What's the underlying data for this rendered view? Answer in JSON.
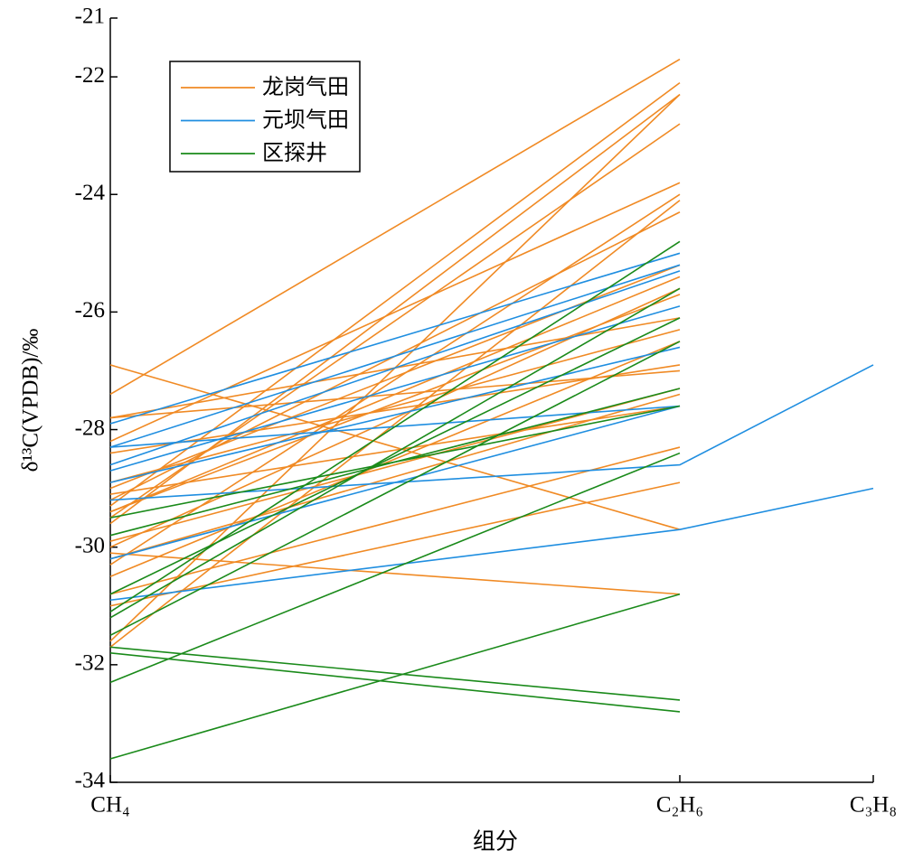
{
  "chart_data": {
    "type": "line",
    "xlabel": "组分",
    "ylabel": "δ¹³C(VPDB)/‰",
    "categories": [
      "CH₄",
      "C₂H₆",
      "C₃H₈"
    ],
    "ylim": [
      -34,
      -21
    ],
    "yticks": [
      -21,
      -22,
      -24,
      -26,
      -28,
      -30,
      -32,
      -34
    ],
    "legend": "upper left",
    "series": [
      {
        "name": "龙岗气田",
        "color": "#f08a24",
        "lines": [
          [
            -27.4,
            -21.7,
            null
          ],
          [
            -29.3,
            -22.1,
            null
          ],
          [
            -29.6,
            -22.3,
            null
          ],
          [
            -31.6,
            -22.3,
            null
          ],
          [
            -29.5,
            -22.8,
            null
          ],
          [
            -28.2,
            -23.8,
            null
          ],
          [
            -30.3,
            -24.0,
            null
          ],
          [
            -29.2,
            -24.3,
            null
          ],
          [
            -29.0,
            -25.2,
            null
          ],
          [
            -29.4,
            -25.4,
            null
          ],
          [
            -30.0,
            -25.6,
            null
          ],
          [
            -27.8,
            -26.1,
            null
          ],
          [
            -28.9,
            -26.3,
            null
          ],
          [
            -30.5,
            -26.5,
            null
          ],
          [
            -28.4,
            -26.9,
            null
          ],
          [
            -27.8,
            -27.0,
            null
          ],
          [
            -29.9,
            -27.3,
            null
          ],
          [
            -30.2,
            -27.4,
            null
          ],
          [
            -29.1,
            -27.6,
            null
          ],
          [
            -30.8,
            -28.3,
            null
          ],
          [
            -31.0,
            -28.9,
            null
          ],
          [
            -26.9,
            -29.7,
            null
          ],
          [
            -30.1,
            -30.8,
            null
          ],
          [
            -29.4,
            -25.7,
            null
          ],
          [
            -31.7,
            -24.1,
            null
          ]
        ]
      },
      {
        "name": "元坝气田",
        "color": "#1f8ee0",
        "lines": [
          [
            -27.9,
            -25.0,
            null
          ],
          [
            -28.3,
            -25.2,
            null
          ],
          [
            -28.6,
            -25.3,
            null
          ],
          [
            -28.7,
            -25.9,
            null
          ],
          [
            -28.9,
            -26.6,
            null
          ],
          [
            -29.2,
            -28.6,
            -26.9
          ],
          [
            -30.2,
            -27.6,
            null
          ],
          [
            -30.9,
            -29.7,
            -29.0
          ],
          [
            -28.3,
            -27.6,
            null
          ]
        ]
      },
      {
        "name": "区探井",
        "color": "#1a8a1a",
        "lines": [
          [
            -31.1,
            -24.8,
            null
          ],
          [
            -31.2,
            -25.6,
            null
          ],
          [
            -30.8,
            -26.1,
            null
          ],
          [
            -31.5,
            -26.5,
            null
          ],
          [
            -29.8,
            -27.3,
            null
          ],
          [
            -29.5,
            -27.6,
            null
          ],
          [
            -32.3,
            -28.4,
            null
          ],
          [
            -33.6,
            -30.8,
            null
          ],
          [
            -31.7,
            -32.6,
            null
          ],
          [
            -31.8,
            -32.8,
            null
          ]
        ]
      }
    ]
  }
}
